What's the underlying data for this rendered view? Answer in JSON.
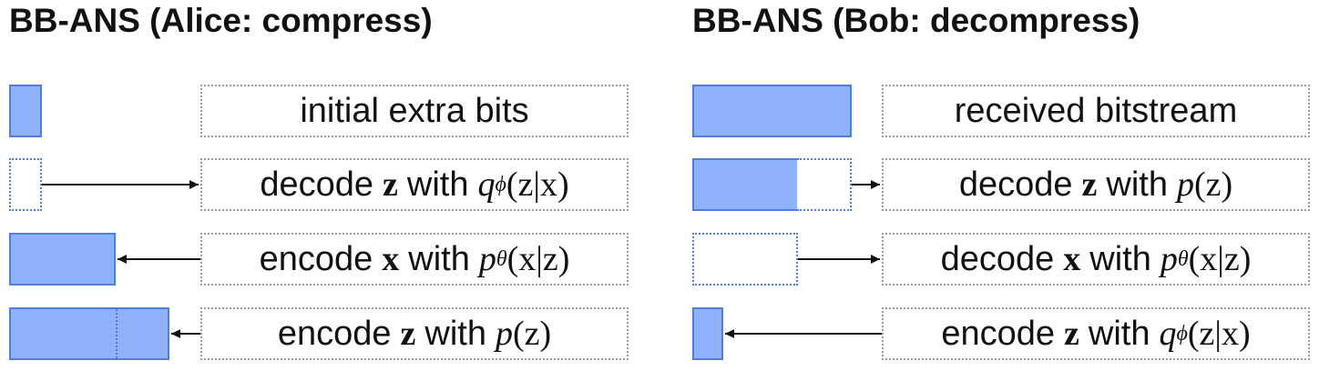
{
  "left": {
    "title": "BB-ANS (Alice: compress)",
    "rows": [
      {
        "text": "initial extra bits"
      },
      {
        "pre": "decode",
        "var": "z",
        "mid": "with",
        "fn": "q",
        "sub": "ϕ",
        "args": "(z|x)"
      },
      {
        "pre": "encode",
        "var": "x",
        "mid": "with",
        "fn": "p",
        "sub": "θ",
        "args": "(x|z)"
      },
      {
        "pre": "encode",
        "var": "z",
        "mid": "with",
        "fn": "p",
        "sub": "",
        "args": "(z)"
      }
    ]
  },
  "right": {
    "title": "BB-ANS (Bob: decompress)",
    "rows": [
      {
        "text": "received bitstream"
      },
      {
        "pre": "decode",
        "var": "z",
        "mid": "with",
        "fn": "p",
        "sub": "",
        "args": "(z)"
      },
      {
        "pre": "decode",
        "var": "x",
        "mid": "with",
        "fn": "p",
        "sub": "θ",
        "args": "(x|z)"
      },
      {
        "pre": "encode",
        "var": "z",
        "mid": "with",
        "fn": "q",
        "sub": "ϕ",
        "args": "(z|x)"
      }
    ]
  },
  "colors": {
    "bar_fill": "#8fb3fb",
    "bar_border": "#4f7de0",
    "box_border": "#9c9c9c"
  }
}
